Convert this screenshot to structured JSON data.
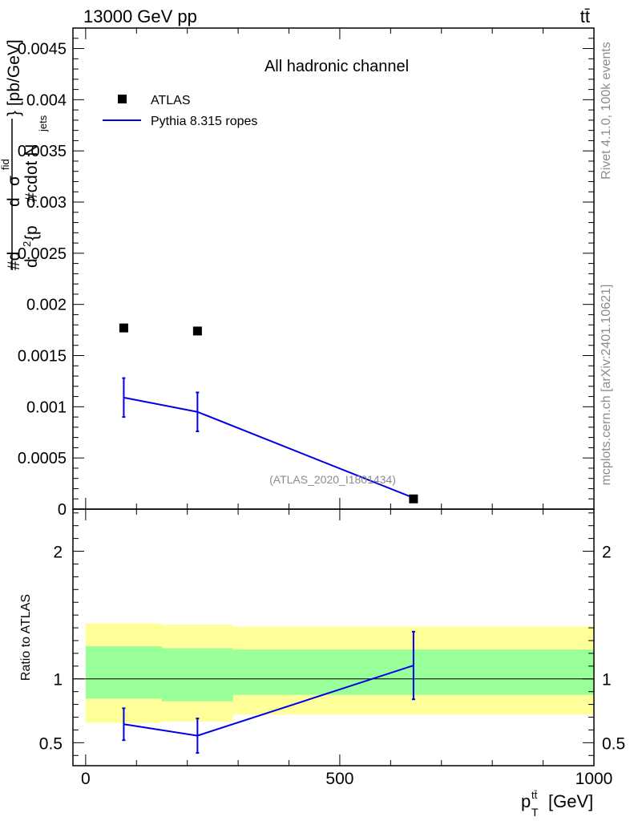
{
  "header": {
    "left": "13000 GeV pp",
    "right": "tt̄"
  },
  "side_labels": {
    "rivet": "Rivet 4.1.0,  100k events",
    "mcplots": "mcplots.cern.ch [arXiv:2401.10621]"
  },
  "colors": {
    "data": "#000000",
    "mc": "#0000e6",
    "band_outer": "#ffff99",
    "band_inner": "#99ff99",
    "watermark": "#8c8c8c"
  },
  "chart_data": [
    {
      "type": "scatter",
      "panel": "main",
      "title": "All hadronic channel",
      "ylabel": "#d^2σ^{fid} / d^2 {p_T^{tt̄} #cdot N_jets} [pb/GeV]",
      "ylabel_parts": {
        "numer": "#d",
        "numer2": "d",
        "sup": "σ",
        "fid": "fid",
        "denom": "d",
        "denom_sup": "2",
        "denom_text": "{p",
        "denom_text2": "#cdot N",
        "jets": "jets",
        "unit": "} [pb/GeV]"
      },
      "ylim": [
        0,
        0.0047
      ],
      "xlim": [
        -25,
        1000
      ],
      "yticks": [
        0,
        0.0005,
        0.001,
        0.0015,
        0.002,
        0.0025,
        0.003,
        0.0035,
        0.004,
        0.0045
      ],
      "ytick_labels": [
        "0",
        "0.0005",
        "0.001",
        "0.0015",
        "0.002",
        "0.0025",
        "0.003",
        "0.0035",
        "0.004",
        "0.0045"
      ],
      "legend": [
        {
          "label": "ATLAS",
          "kind": "marker"
        },
        {
          "label": "Pythia 8.315 ropes",
          "kind": "line"
        }
      ],
      "annotation": "(ATLAS_2020_I1801434)",
      "series": [
        {
          "name": "ATLAS",
          "x": [
            75,
            220,
            645
          ],
          "y": [
            0.00177,
            0.00174,
            0.0001
          ]
        },
        {
          "name": "Pythia 8.315 ropes",
          "x": [
            75,
            220,
            645
          ],
          "y": [
            0.00109,
            0.00095,
            0.00011
          ],
          "err": [
            0.00019,
            0.00019,
            5e-06
          ]
        }
      ]
    },
    {
      "type": "line",
      "panel": "ratio",
      "ylabel": "Ratio to ATLAS",
      "xlabel_parts": {
        "p": "p",
        "sup": "tt̄",
        "sub": "T",
        "unit": "[GeV]"
      },
      "ylim": [
        0.32,
        2.33
      ],
      "xlim": [
        -25,
        1000
      ],
      "yticks": [
        0.5,
        1,
        2
      ],
      "ytick_labels": [
        "0.5",
        "1",
        "2"
      ],
      "xticks": [
        0,
        500,
        1000
      ],
      "xtick_labels": [
        "0",
        "500",
        "1000"
      ],
      "bands": [
        {
          "x0": 0,
          "x1": 150,
          "outer": [
            0.655,
            1.435
          ],
          "inner": [
            0.845,
            1.255
          ]
        },
        {
          "x0": 150,
          "x1": 290,
          "outer": [
            0.665,
            1.425
          ],
          "inner": [
            0.825,
            1.24
          ]
        },
        {
          "x0": 290,
          "x1": 1000,
          "outer": [
            0.72,
            1.41
          ],
          "inner": [
            0.875,
            1.23
          ]
        }
      ],
      "series": [
        {
          "name": "Pythia 8.315 ropes",
          "x": [
            75,
            220,
            645
          ],
          "y": [
            0.645,
            0.555,
            1.105
          ],
          "err": [
            0.125,
            0.135,
            0.265
          ]
        }
      ]
    }
  ]
}
